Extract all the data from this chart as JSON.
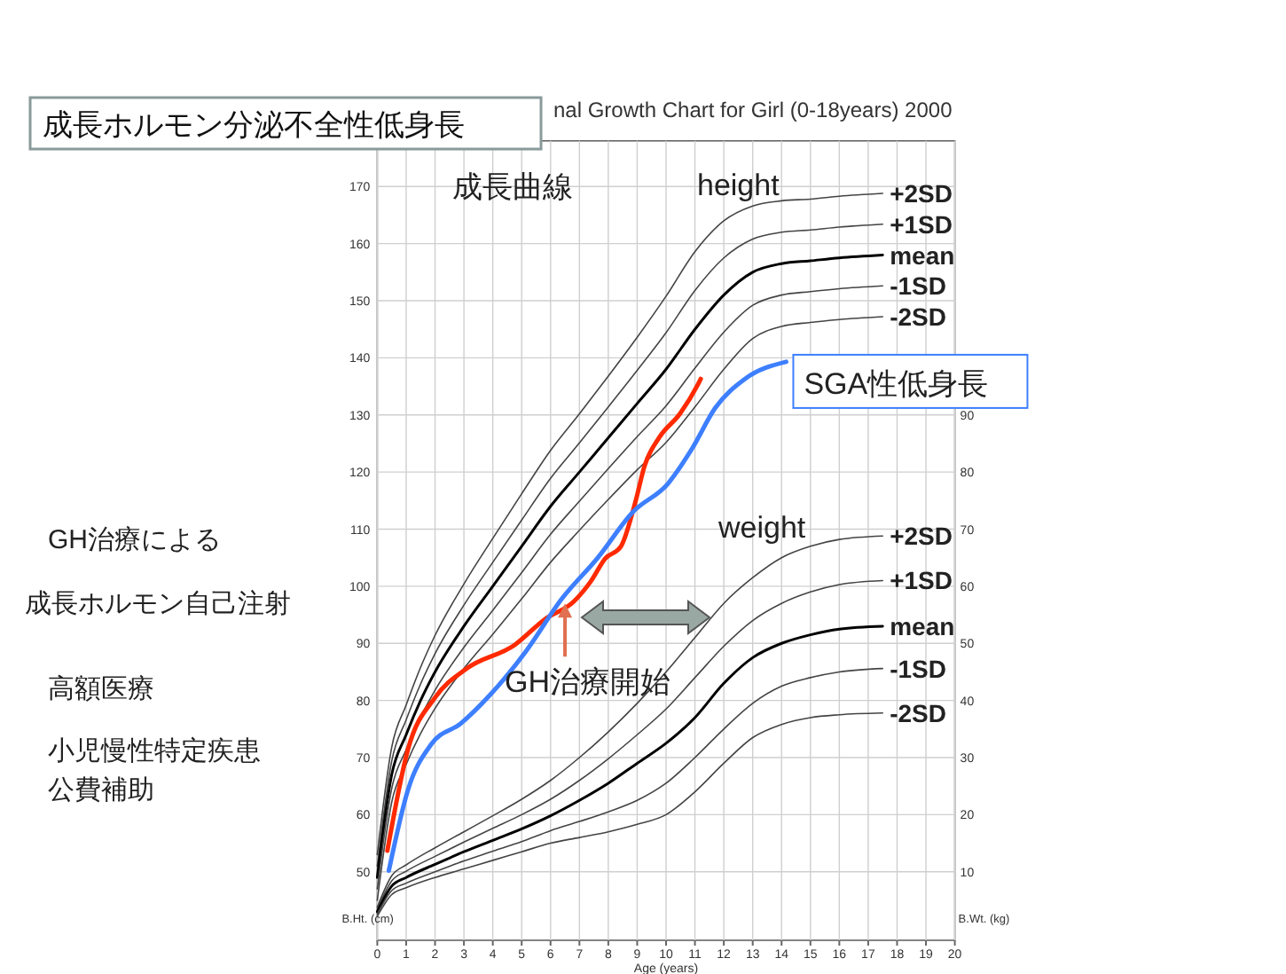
{
  "chart_data": {
    "type": "line",
    "title": "成長ホルモン分泌不全性低身長",
    "subtitle": "nal Growth Chart for Girl (0-18years) 2000",
    "xlabel": "Age (years)",
    "ylabel": "B.Ht. (cm)",
    "y2label": "B.Wt. (kg)",
    "xlim": [
      0,
      20
    ],
    "xticks": [
      0,
      1,
      2,
      3,
      4,
      5,
      6,
      7,
      8,
      9,
      10,
      11,
      12,
      13,
      14,
      15,
      16,
      17,
      18,
      19,
      20
    ],
    "ylim": [
      38,
      178
    ],
    "yticks": [
      50,
      60,
      70,
      80,
      90,
      100,
      110,
      120,
      130,
      140,
      150,
      160,
      170
    ],
    "y2lim": [
      -2,
      138
    ],
    "y2ticks": [
      10,
      20,
      30,
      40,
      50,
      60,
      70,
      80,
      90
    ],
    "grid": true,
    "series": [
      {
        "name": "+2SD",
        "color": "#444444",
        "x": [
          0,
          0.5,
          1,
          1.5,
          2,
          3,
          4,
          5,
          6,
          7,
          8,
          9,
          10,
          11,
          12,
          13,
          14,
          15,
          16,
          17.5
        ],
        "values": [
          53,
          71.8,
          79.2,
          85.8,
          91.4,
          100.4,
          108.4,
          116.2,
          123.8,
          130.2,
          136.8,
          143.6,
          150.8,
          158.6,
          164,
          166.6,
          167.5,
          167.8,
          168.3,
          168.8
        ]
      },
      {
        "name": "+1SD",
        "color": "#444444",
        "x": [
          0,
          0.5,
          1,
          1.5,
          2,
          3,
          4,
          5,
          6,
          7,
          8,
          9,
          10,
          11,
          12,
          13,
          14,
          15,
          16,
          17.5
        ],
        "values": [
          51,
          69.4,
          76.6,
          82.9,
          88.2,
          96.7,
          104.2,
          111.6,
          118.9,
          125.1,
          131.4,
          137.8,
          144.4,
          151.8,
          157.5,
          160.8,
          162,
          162.4,
          162.9,
          163.4
        ]
      },
      {
        "name": "mean",
        "color": "#000000",
        "x": [
          0,
          0.5,
          1,
          1.5,
          2,
          3,
          4,
          5,
          6,
          7,
          8,
          9,
          10,
          11,
          12,
          13,
          14,
          15,
          16,
          17.5
        ],
        "values": [
          49,
          67,
          74,
          80,
          85,
          93,
          100,
          107,
          114,
          120,
          126,
          132,
          138,
          145,
          151,
          155,
          156.5,
          157,
          157.5,
          158
        ]
      },
      {
        "name": "-1SD",
        "color": "#444444",
        "x": [
          0,
          0.5,
          1,
          1.5,
          2,
          3,
          4,
          5,
          6,
          7,
          8,
          9,
          10,
          11,
          12,
          13,
          14,
          15,
          16,
          17.5
        ],
        "values": [
          47,
          64.6,
          71.4,
          77.1,
          81.8,
          89.3,
          95.8,
          102.4,
          109.1,
          114.9,
          120.6,
          126.2,
          131.6,
          138.2,
          144.5,
          149.2,
          151,
          151.6,
          152.1,
          152.6
        ]
      },
      {
        "name": "-2SD",
        "color": "#444444",
        "x": [
          0,
          0.5,
          1,
          1.5,
          2,
          3,
          4,
          5,
          6,
          7,
          8,
          9,
          10,
          11,
          12,
          13,
          14,
          15,
          16,
          17.5
        ],
        "values": [
          45,
          62.2,
          68.8,
          74.2,
          78.6,
          85.6,
          91.6,
          97.8,
          104.2,
          109.8,
          115.2,
          120.4,
          125.2,
          131.4,
          138,
          143.4,
          145.5,
          146.2,
          146.7,
          147.2
        ]
      },
      {
        "name": "+2SD",
        "color": "#444444",
        "axis": "y2",
        "x": [
          0,
          0.5,
          1,
          2,
          3,
          4,
          5,
          6,
          7,
          8,
          9,
          10,
          11,
          12,
          13,
          14,
          15,
          16,
          17.5
        ],
        "values": [
          3.8,
          9.3,
          11.2,
          14.2,
          17,
          19.8,
          22.7,
          26,
          30,
          34.5,
          39.5,
          45,
          51,
          57,
          61.5,
          65,
          67,
          68.2,
          68.8
        ]
      },
      {
        "name": "+1SD",
        "color": "#444444",
        "axis": "y2",
        "x": [
          0,
          0.5,
          1,
          2,
          3,
          4,
          5,
          6,
          7,
          8,
          9,
          10,
          11,
          12,
          13,
          14,
          15,
          16,
          17.5
        ],
        "values": [
          3.4,
          8.4,
          10.1,
          12.7,
          15.2,
          17.6,
          20,
          22.7,
          26,
          29.8,
          34,
          38.5,
          44,
          49.5,
          54,
          57,
          59,
          60.3,
          61
        ]
      },
      {
        "name": "mean",
        "color": "#000000",
        "axis": "y2",
        "x": [
          0,
          0.5,
          1,
          2,
          3,
          4,
          5,
          6,
          7,
          8,
          9,
          10,
          11,
          12,
          13,
          14,
          15,
          16,
          17.5
        ],
        "values": [
          3,
          7.5,
          9,
          11.3,
          13.5,
          15.5,
          17.5,
          19.8,
          22.5,
          25.5,
          29,
          32.5,
          37,
          43,
          47.5,
          50,
          51.5,
          52.5,
          53
        ]
      },
      {
        "name": "-1SD",
        "color": "#444444",
        "axis": "y2",
        "x": [
          0,
          0.5,
          1,
          2,
          3,
          4,
          5,
          6,
          7,
          8,
          9,
          10,
          11,
          12,
          13,
          14,
          15,
          16,
          17.5
        ],
        "values": [
          2.6,
          6.7,
          8,
          10,
          11.9,
          13.6,
          15.3,
          17.2,
          18.8,
          20.5,
          22.5,
          25.5,
          30,
          35,
          39.5,
          42.5,
          44,
          45,
          45.6
        ]
      },
      {
        "name": "-2SD",
        "color": "#444444",
        "axis": "y2",
        "x": [
          0,
          0.5,
          1,
          2,
          3,
          4,
          5,
          6,
          7,
          8,
          9,
          10,
          11,
          12,
          13,
          14,
          15,
          16,
          17.5
        ],
        "values": [
          2.2,
          6,
          7.2,
          9,
          10.5,
          12,
          13.5,
          15,
          16,
          17,
          18.3,
          20,
          24,
          29,
          33.5,
          35.8,
          37,
          37.5,
          37.8
        ]
      },
      {
        "color": "#ff2a00",
        "x": [
          0.35,
          1.06,
          2,
          3.1,
          4.75,
          5.8,
          6.8,
          7.4,
          7.9,
          8.43,
          8.95,
          9.25,
          9.77,
          10.48,
          11.1,
          11.2
        ],
        "values": [
          53.7,
          71.4,
          80.5,
          85.6,
          89.7,
          94.2,
          97.3,
          100.9,
          104.9,
          106.9,
          115,
          121,
          126.1,
          130.2,
          135.3,
          136.3
        ]
      },
      {
        "name": "SGA性低身長",
        "color": "#3d7fff",
        "x": [
          0.4,
          1.06,
          1.88,
          2.9,
          3.93,
          5.16,
          6.39,
          7.62,
          8.85,
          10.07,
          10.9,
          11.7,
          12.73,
          14.16
        ],
        "values": [
          50.2,
          64.3,
          72.4,
          76,
          81.1,
          88.7,
          97.8,
          104.9,
          113,
          118,
          124.1,
          131.2,
          136.3,
          139.3
        ]
      }
    ],
    "annotations": [
      "成長曲線",
      "height",
      "weight",
      {
        "text": "GH治療開始",
        "x": 6.5,
        "y": 97
      },
      "GH治療による",
      "成長ホルモン自己注射",
      "高額医療",
      "小児慢性特定疾患",
      "公費補助"
    ]
  }
}
